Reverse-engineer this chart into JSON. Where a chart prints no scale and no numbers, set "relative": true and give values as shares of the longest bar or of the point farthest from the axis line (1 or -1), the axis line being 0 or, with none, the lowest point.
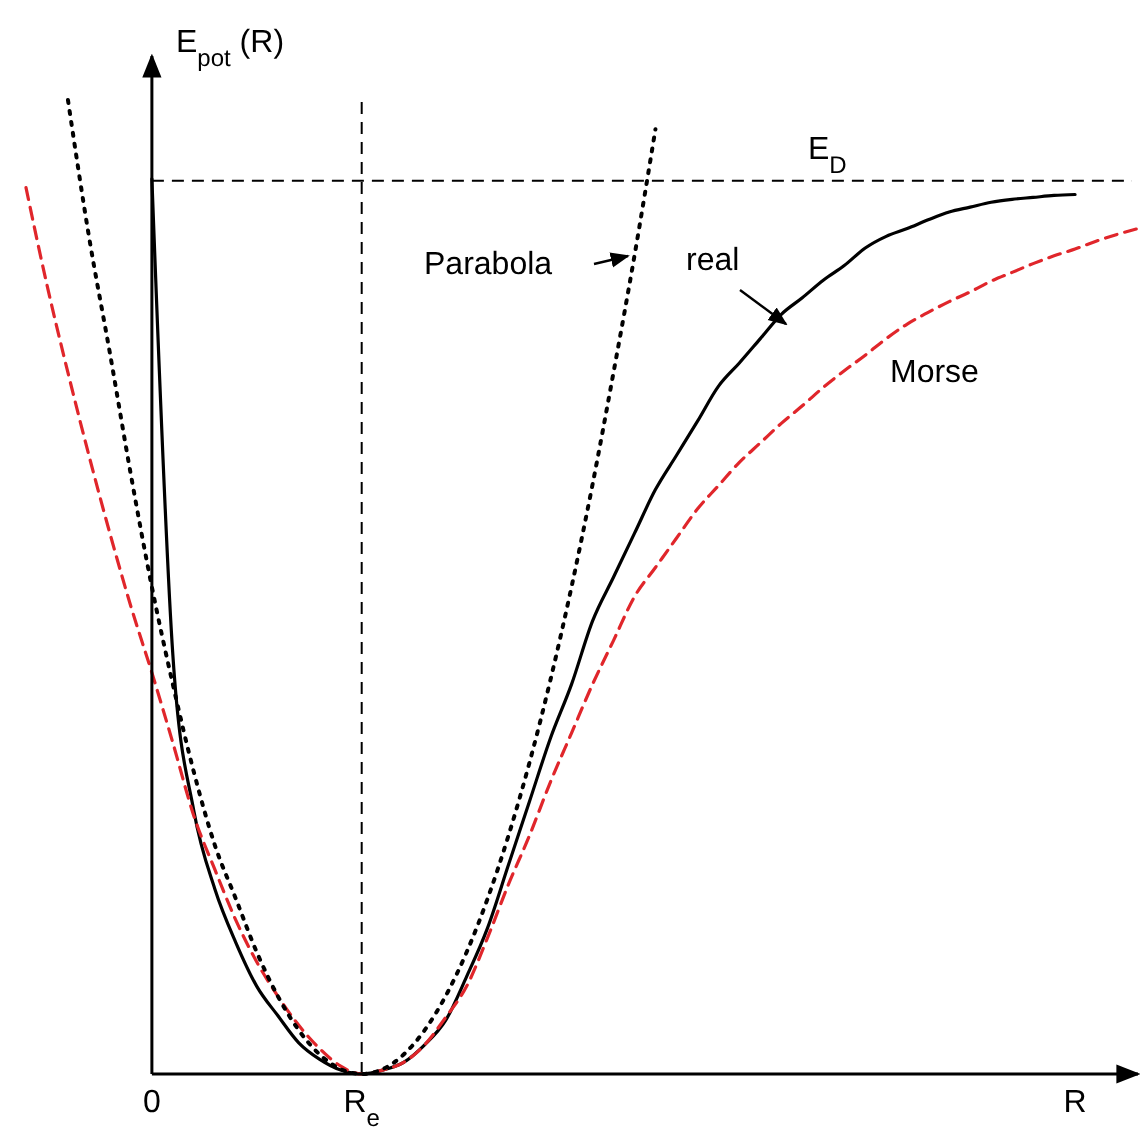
{
  "chart_data": {
    "type": "line",
    "relative": true,
    "ylabel": "E$_{pot}$ (R)",
    "categories": [
      null,
      null,
      null,
      null,
      null,
      null,
      "0",
      null,
      null,
      null,
      null,
      null,
      null,
      null,
      null,
      null,
      "R$_{e}$",
      null,
      null,
      null,
      null,
      null,
      null,
      null,
      null,
      null,
      null,
      null,
      null,
      null,
      null,
      null,
      null,
      null,
      null,
      null,
      null,
      null,
      null,
      null,
      null,
      null,
      null,
      null,
      null,
      null,
      null,
      null,
      null,
      null,
      "R",
      null,
      null,
      null
    ],
    "ref_lines": [
      {
        "axis": "y",
        "value": 0.917,
        "label": "E$_{D}$",
        "line_style": "dashed",
        "color": "#000000"
      },
      {
        "axis": "x",
        "value": "R$_{e}$",
        "line_style": "dashed",
        "color": "#000000"
      }
    ],
    "series": [
      {
        "name": "real",
        "color": "#000000",
        "line_style": "solid",
        "values": [
          null,
          null,
          null,
          null,
          null,
          null,
          0.919,
          0.43,
          0.27,
          0.19,
          0.135,
          0.09,
          0.06,
          0.032,
          0.015,
          0.004,
          0,
          0.004,
          0.012,
          0.03,
          0.055,
          0.1,
          0.15,
          0.215,
          0.28,
          0.345,
          0.4,
          0.465,
          0.51,
          0.555,
          0.6,
          0.635,
          0.67,
          0.706,
          0.73,
          0.755,
          0.78,
          0.797,
          0.815,
          0.83,
          0.848,
          0.86,
          0.868,
          0.877,
          0.885,
          0.89,
          0.895,
          0.898,
          0.9,
          0.902,
          0.903,
          null,
          null,
          null
        ]
      },
      {
        "name": "Morse",
        "color": "#e0262b",
        "line_style": "dashed",
        "values": [
          0.91,
          0.81,
          0.72,
          0.635,
          0.555,
          0.48,
          0.412,
          0.34,
          0.265,
          0.21,
          0.158,
          0.115,
          0.08,
          0.05,
          0.026,
          0.008,
          0,
          0.004,
          0.012,
          0.03,
          0.058,
          0.09,
          0.14,
          0.195,
          0.245,
          0.3,
          0.35,
          0.4,
          0.445,
          0.49,
          0.52,
          0.55,
          0.58,
          0.604,
          0.628,
          0.648,
          0.668,
          0.686,
          0.705,
          0.722,
          0.738,
          0.755,
          0.77,
          0.782,
          0.793,
          0.803,
          0.814,
          0.823,
          0.832,
          0.84,
          0.847,
          0.855,
          0.862,
          0.868
        ]
      },
      {
        "name": "Parabola",
        "color": "#000000",
        "line_style": "dotted",
        "values": [
          null,
          null,
          1,
          0.86,
          0.74,
          0.615,
          0.5,
          0.4,
          0.31,
          0.235,
          0.18,
          0.125,
          0.08,
          0.045,
          0.02,
          0.005,
          0,
          0.005,
          0.02,
          0.045,
          0.08,
          0.125,
          0.18,
          0.245,
          0.32,
          0.405,
          0.5,
          0.605,
          0.72,
          0.84,
          0.97,
          null,
          null,
          null,
          null,
          null,
          null,
          null,
          null,
          null,
          null,
          null,
          null,
          null,
          null,
          null,
          null,
          null,
          null,
          null,
          null,
          null,
          null,
          null
        ]
      }
    ]
  }
}
